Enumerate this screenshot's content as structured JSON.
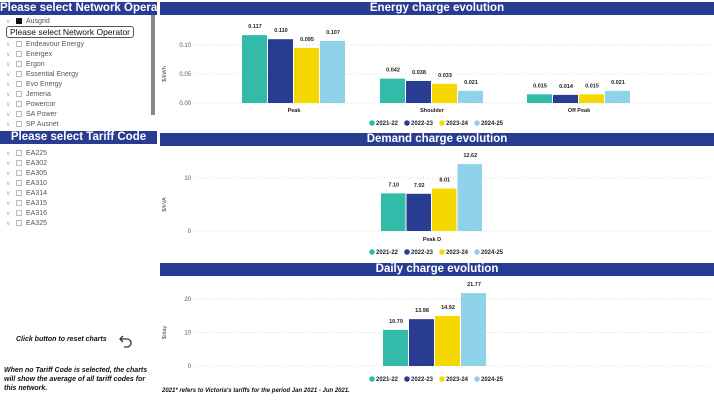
{
  "network": {
    "header": "Please select Network Operator",
    "tooltip": "Please select Network Operator",
    "items": [
      {
        "label": "Ausgrid",
        "checked": true
      },
      {
        "label": "Endeavour Energy",
        "checked": false
      },
      {
        "label": "Energex",
        "checked": false
      },
      {
        "label": "Ergon",
        "checked": false
      },
      {
        "label": "Essential Energy",
        "checked": false
      },
      {
        "label": "Evo Energy",
        "checked": false
      },
      {
        "label": "Jemena",
        "checked": false
      },
      {
        "label": "Powercor",
        "checked": false
      },
      {
        "label": "SA Power",
        "checked": false
      },
      {
        "label": "SP Ausnet",
        "checked": false
      }
    ]
  },
  "tariff": {
    "header": "Please select Tariff Code",
    "items": [
      "EA225",
      "EA302",
      "EA305",
      "EA310",
      "EA314",
      "EA315",
      "EA316",
      "EA325"
    ]
  },
  "reset": {
    "label": "Click button to reset charts",
    "icon": "undo-arrow-icon"
  },
  "info_note": "When no Tariff Code is selected, the charts will show the average of all tariff codes for this network.",
  "footnote": "2021* refers to Victoria's tariffs for the period Jan 2021 - Jun 2021.",
  "colors": {
    "header_bg": "#283c91",
    "2021-22": "#33bbaa",
    "2022-23": "#283c91",
    "2023-24": "#f5d800",
    "2024-25": "#8fd3ea"
  },
  "chart_data": [
    {
      "type": "bar",
      "title": "Energy charge evolution",
      "ylabel": "$/kWh",
      "categories": [
        "Peak",
        "Shoulder",
        "Off Peak"
      ],
      "yticks": [
        "0.00",
        "0.05",
        "0.10"
      ],
      "ylim": [
        0,
        0.12
      ],
      "grid": true,
      "legend": "bottom-center",
      "series": [
        {
          "name": "2021-22",
          "values": [
            0.117,
            0.042,
            0.015
          ],
          "labels": [
            "0.117",
            "0.042",
            "0.015"
          ]
        },
        {
          "name": "2022-23",
          "values": [
            0.11,
            0.038,
            0.014
          ],
          "labels": [
            "0.110",
            "0.038",
            "0.014"
          ]
        },
        {
          "name": "2023-24",
          "values": [
            0.095,
            0.033,
            0.015
          ],
          "labels": [
            "0.095",
            "0.033",
            "0.015"
          ]
        },
        {
          "name": "2024-25",
          "values": [
            0.107,
            0.021,
            0.021
          ],
          "labels": [
            "0.107",
            "0.021",
            "0.021"
          ]
        }
      ]
    },
    {
      "type": "bar",
      "title": "Demand charge evolution",
      "ylabel": "$/kVA",
      "categories": [
        "Peak D"
      ],
      "yticks": [
        "0",
        "10"
      ],
      "ylim": [
        0,
        13
      ],
      "grid": true,
      "legend": "bottom-center",
      "series": [
        {
          "name": "2021-22",
          "values": [
            7.1
          ],
          "labels": [
            "7.10"
          ]
        },
        {
          "name": "2022-23",
          "values": [
            7.02
          ],
          "labels": [
            "7.02"
          ]
        },
        {
          "name": "2023-24",
          "values": [
            8.01
          ],
          "labels": [
            "8.01"
          ]
        },
        {
          "name": "2024-25",
          "values": [
            12.62
          ],
          "labels": [
            "12.62"
          ]
        }
      ]
    },
    {
      "type": "bar",
      "title": "Daily charge evolution",
      "ylabel": "$/day",
      "categories": [
        ""
      ],
      "yticks": [
        "0",
        "10",
        "20"
      ],
      "ylim": [
        0,
        22
      ],
      "grid": true,
      "legend": "bottom-center",
      "series": [
        {
          "name": "2021-22",
          "values": [
            10.79
          ],
          "labels": [
            "10.79"
          ]
        },
        {
          "name": "2022-23",
          "values": [
            13.98
          ],
          "labels": [
            "13.98"
          ]
        },
        {
          "name": "2023-24",
          "values": [
            14.92
          ],
          "labels": [
            "14.92"
          ]
        },
        {
          "name": "2024-25",
          "values": [
            21.77
          ],
          "labels": [
            "21.77"
          ]
        }
      ]
    }
  ]
}
